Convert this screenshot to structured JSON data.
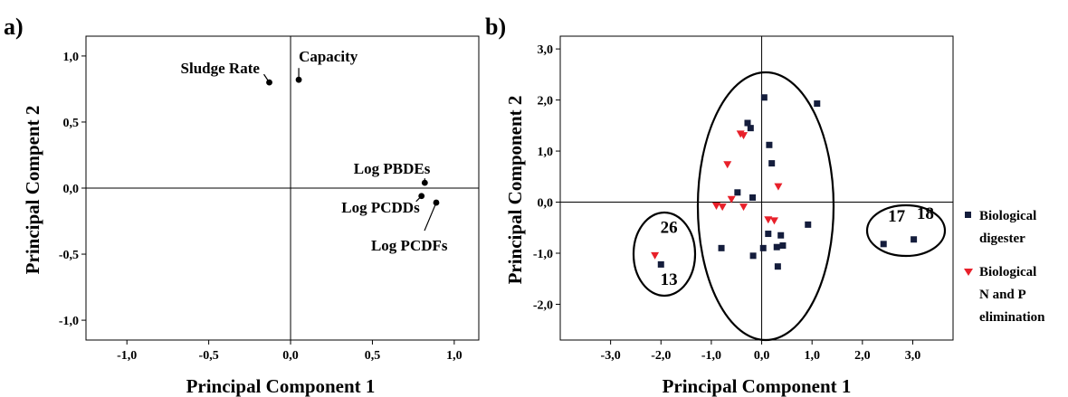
{
  "figure": {
    "panel_a": "a)",
    "panel_b": "b)"
  },
  "chart_data": [
    {
      "type": "scatter",
      "xlabel": "Principal Component 1",
      "ylabel": "Principal Compent 2",
      "xlim": [
        -1.25,
        1.15
      ],
      "ylim": [
        -1.15,
        1.15
      ],
      "xticks": [
        -1.0,
        -0.5,
        0.0,
        0.5,
        1.0
      ],
      "xtick_labels": [
        "-1,0",
        "-0,5",
        "0,0",
        "0,5",
        "1,0"
      ],
      "yticks": [
        -1.0,
        -0.5,
        0.0,
        0.5,
        1.0
      ],
      "ytick_labels": [
        "-1,0",
        "-0,5",
        "0,0",
        "0,5",
        "1,0"
      ],
      "zero_lines": true,
      "points": [
        {
          "label": "Sludge Rate",
          "x": -0.13,
          "y": 0.8
        },
        {
          "label": "Capacity",
          "x": 0.05,
          "y": 0.82
        },
        {
          "label": "Log PBDEs",
          "x": 0.82,
          "y": 0.04
        },
        {
          "label": "Log PCDDs",
          "x": 0.8,
          "y": -0.06
        },
        {
          "label": "Log PCDFs",
          "x": 0.89,
          "y": -0.11
        }
      ]
    },
    {
      "type": "scatter",
      "xlabel": "Principal Component 1",
      "ylabel": "Principal Component 2",
      "xlim": [
        -4.0,
        3.8
      ],
      "ylim": [
        -2.7,
        3.25
      ],
      "xticks": [
        -3,
        -2,
        -1,
        0,
        1,
        2,
        3
      ],
      "xtick_labels": [
        "-3,0",
        "-2,0",
        "-1,0",
        "0,0",
        "1,0",
        "2,0",
        "3,0"
      ],
      "yticks": [
        -2,
        -1,
        0,
        1,
        2,
        3
      ],
      "ytick_labels": [
        "-2,0",
        "-1,0",
        "0,0",
        "1,0",
        "2,0",
        "3,0"
      ],
      "zero_lines": true,
      "legend_position": "right",
      "series": [
        {
          "name": "Biological digester",
          "legend_lines": [
            "Biological",
            "digester"
          ],
          "marker": "square",
          "color": "#141d3c",
          "points": [
            [
              0.05,
              2.05
            ],
            [
              1.1,
              1.93
            ],
            [
              -0.28,
              1.55
            ],
            [
              -0.22,
              1.45
            ],
            [
              0.15,
              1.12
            ],
            [
              0.2,
              0.76
            ],
            [
              -0.48,
              0.19
            ],
            [
              -0.18,
              0.09
            ],
            [
              0.92,
              -0.44
            ],
            [
              0.13,
              -0.62
            ],
            [
              0.38,
              -0.65
            ],
            [
              -0.8,
              -0.9
            ],
            [
              0.03,
              -0.9
            ],
            [
              0.3,
              -0.88
            ],
            [
              0.42,
              -0.85
            ],
            [
              -0.17,
              -1.05
            ],
            [
              0.32,
              -1.26
            ],
            [
              -2.0,
              -1.22
            ],
            [
              2.42,
              -0.82
            ],
            [
              3.02,
              -0.73
            ]
          ]
        },
        {
          "name": "Biological N and P elimination",
          "legend_lines": [
            "Biological",
            "N and P",
            "elimination"
          ],
          "marker": "triangle-down",
          "color": "#e8202a",
          "points": [
            [
              -0.42,
              1.33
            ],
            [
              -0.36,
              1.3
            ],
            [
              -0.68,
              0.73
            ],
            [
              0.33,
              0.3
            ],
            [
              -0.6,
              0.05
            ],
            [
              -0.9,
              -0.08
            ],
            [
              -0.78,
              -0.1
            ],
            [
              -0.36,
              -0.1
            ],
            [
              0.13,
              -0.35
            ],
            [
              0.25,
              -0.37
            ],
            [
              -2.12,
              -1.05
            ]
          ]
        }
      ],
      "annotations": [
        {
          "text": "26",
          "x": -1.84,
          "y": -0.6
        },
        {
          "text": "13",
          "x": -1.84,
          "y": -1.62
        },
        {
          "text": "17",
          "x": 2.68,
          "y": -0.38
        },
        {
          "text": "18",
          "x": 3.25,
          "y": -0.33
        }
      ]
    }
  ]
}
